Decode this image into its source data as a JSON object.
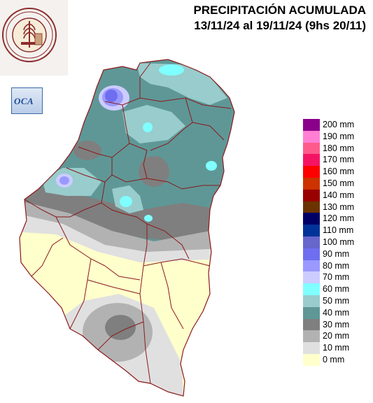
{
  "title": {
    "line1": "PRECIPITACIÓN ACUMULADA",
    "line2": "13/11/24 al 19/11/24 (9hs 20/11)"
  },
  "logo": {
    "icon": "wheat-seal-icon",
    "ring_text": "BOLSA DE CEREALES DE ENTRE RIOS",
    "year": "1979"
  },
  "oca_badge": {
    "text": "OCA"
  },
  "legend": [
    {
      "label": "200 mm",
      "color": "#8b008b"
    },
    {
      "label": "190 mm",
      "color": "#ff7fd4"
    },
    {
      "label": "180 mm",
      "color": "#ff5a8c"
    },
    {
      "label": "170 mm",
      "color": "#f51463"
    },
    {
      "label": "160 mm",
      "color": "#ff0000"
    },
    {
      "label": "150 mm",
      "color": "#cc3300"
    },
    {
      "label": "140 mm",
      "color": "#990000"
    },
    {
      "label": "130 mm",
      "color": "#6b3300"
    },
    {
      "label": "120 mm",
      "color": "#000066"
    },
    {
      "label": "110 mm",
      "color": "#003399"
    },
    {
      "label": "100 mm",
      "color": "#6666cc"
    },
    {
      "label": "90 mm",
      "color": "#6e6ef0"
    },
    {
      "label": "80 mm",
      "color": "#9999ff"
    },
    {
      "label": "70 mm",
      "color": "#ccccff"
    },
    {
      "label": "60 mm",
      "color": "#7fffff"
    },
    {
      "label": "50 mm",
      "color": "#99cccc"
    },
    {
      "label": "40 mm",
      "color": "#5f9797"
    },
    {
      "label": "30 mm",
      "color": "#7f7f7f"
    },
    {
      "label": "20 mm",
      "color": "#b2b2b2"
    },
    {
      "label": "10 mm",
      "color": "#e0e0e0"
    },
    {
      "label": "0 mm",
      "color": "#ffffcc"
    }
  ]
}
